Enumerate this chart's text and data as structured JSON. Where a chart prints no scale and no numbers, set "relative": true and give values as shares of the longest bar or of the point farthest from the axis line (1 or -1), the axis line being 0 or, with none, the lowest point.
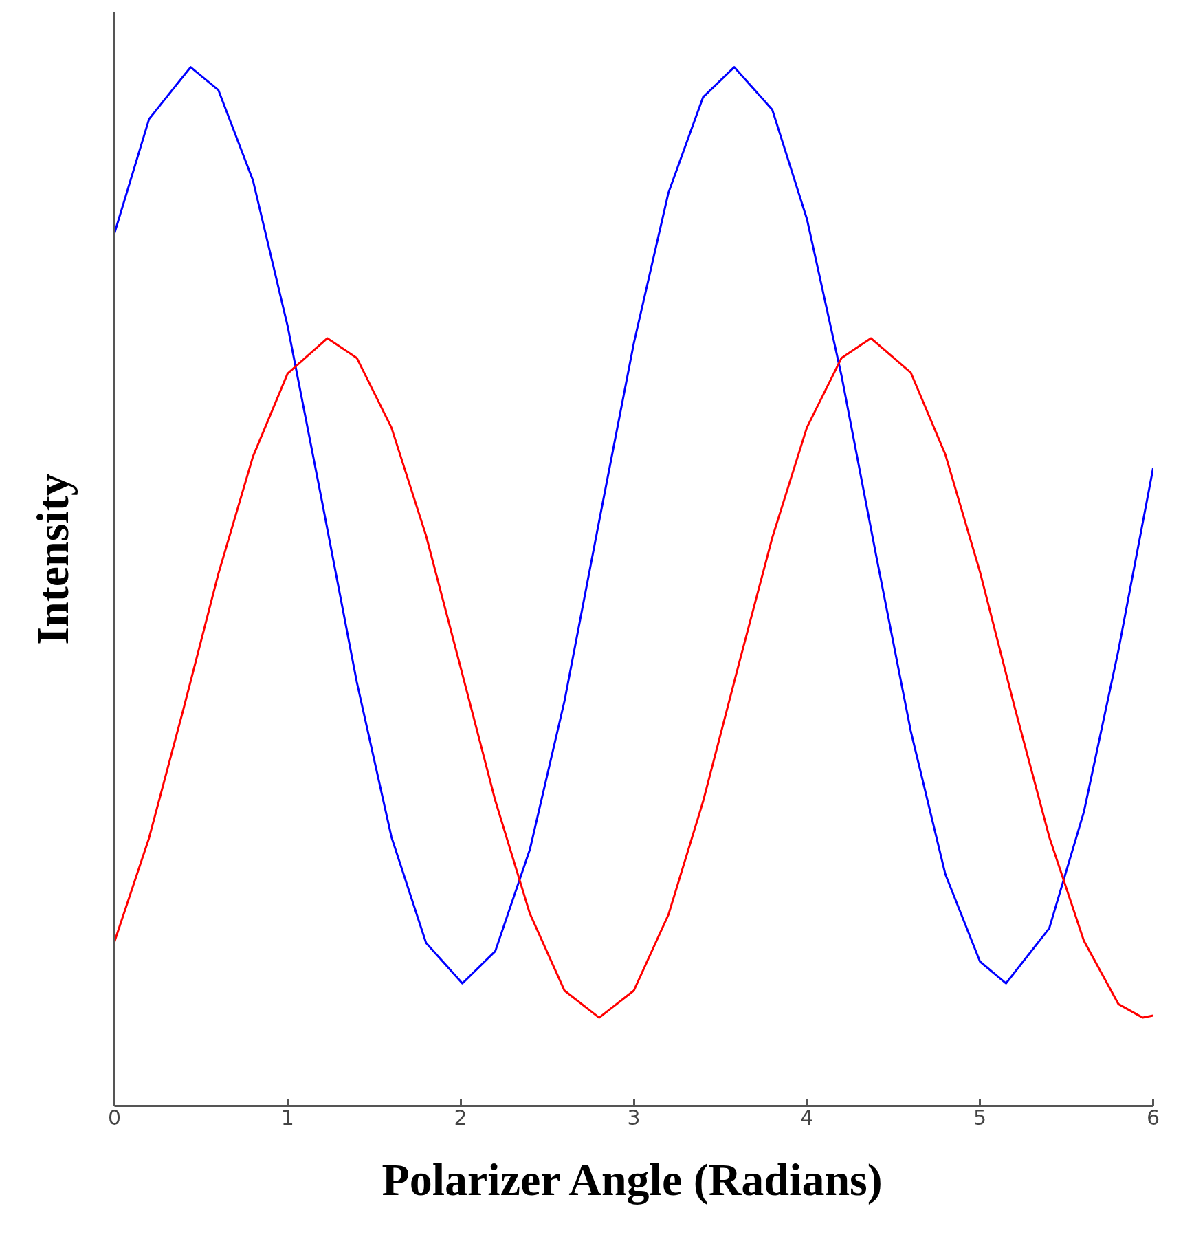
{
  "chart_data": {
    "type": "line",
    "xlabel": "Polarizer Angle (Radians)",
    "ylabel": "Intensity",
    "relative": true,
    "xlim": [
      0,
      6
    ],
    "xticks": [
      0,
      1,
      2,
      3,
      4,
      5,
      6
    ],
    "tick_labels": "x",
    "line_style": "solid",
    "series": [
      {
        "color": "#0000ff",
        "x": [
          0,
          0.2,
          0.44,
          0.6,
          0.8,
          1.0,
          1.2,
          1.4,
          1.6,
          1.8,
          2.01,
          2.2,
          2.4,
          2.6,
          2.8,
          3.0,
          3.2,
          3.4,
          3.58,
          3.8,
          4.0,
          4.2,
          4.4,
          4.6,
          4.8,
          5.0,
          5.15,
          5.4,
          5.6,
          5.8,
          6.0
        ],
        "values": [
          0.84,
          0.95,
          1.0,
          0.978,
          0.891,
          0.751,
          0.581,
          0.408,
          0.259,
          0.157,
          0.118,
          0.149,
          0.247,
          0.39,
          0.563,
          0.734,
          0.879,
          0.971,
          1.0,
          0.959,
          0.854,
          0.703,
          0.53,
          0.361,
          0.223,
          0.139,
          0.118,
          0.171,
          0.283,
          0.439,
          0.614
        ]
      },
      {
        "color": "#ff0000",
        "x": [
          0,
          0.2,
          0.4,
          0.6,
          0.8,
          1.0,
          1.23,
          1.4,
          1.6,
          1.8,
          2.0,
          2.2,
          2.4,
          2.6,
          2.8,
          3.0,
          3.2,
          3.4,
          3.6,
          3.8,
          4.0,
          4.2,
          4.37,
          4.6,
          4.8,
          5.0,
          5.2,
          5.4,
          5.6,
          5.8,
          5.94,
          6.0
        ],
        "values": [
          0.158,
          0.258,
          0.383,
          0.512,
          0.625,
          0.705,
          0.739,
          0.72,
          0.653,
          0.549,
          0.422,
          0.294,
          0.185,
          0.111,
          0.085,
          0.111,
          0.184,
          0.293,
          0.421,
          0.547,
          0.653,
          0.72,
          0.739,
          0.706,
          0.627,
          0.514,
          0.384,
          0.259,
          0.159,
          0.098,
          0.085,
          0.087
        ]
      }
    ]
  }
}
